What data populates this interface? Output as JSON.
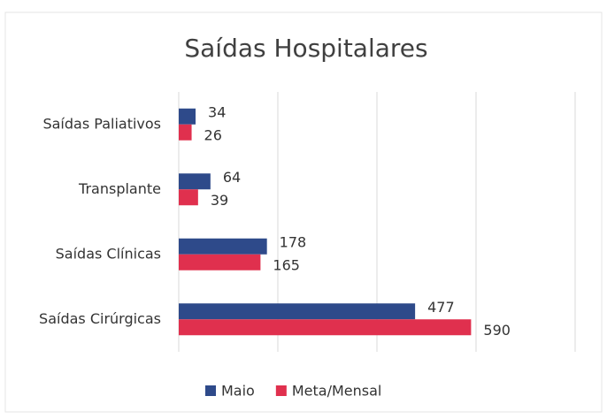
{
  "chart_data": {
    "type": "barh",
    "title": "Saídas Hospitalares",
    "categories": [
      "Saídas Paliativos",
      "Transplante",
      "Saídas Clínicas",
      "Saídas Cirúrgicas"
    ],
    "series": [
      {
        "name": "Maio",
        "color": "#2e4a8a",
        "values": [
          34,
          64,
          178,
          477
        ]
      },
      {
        "name": "Meta/Mensal",
        "color": "#e0304e",
        "values": [
          26,
          39,
          165,
          590
        ]
      }
    ],
    "xlim": [
      0,
      800
    ],
    "xticks": [
      0,
      200,
      400,
      600,
      800
    ],
    "grid": true,
    "legend": "bottom"
  }
}
